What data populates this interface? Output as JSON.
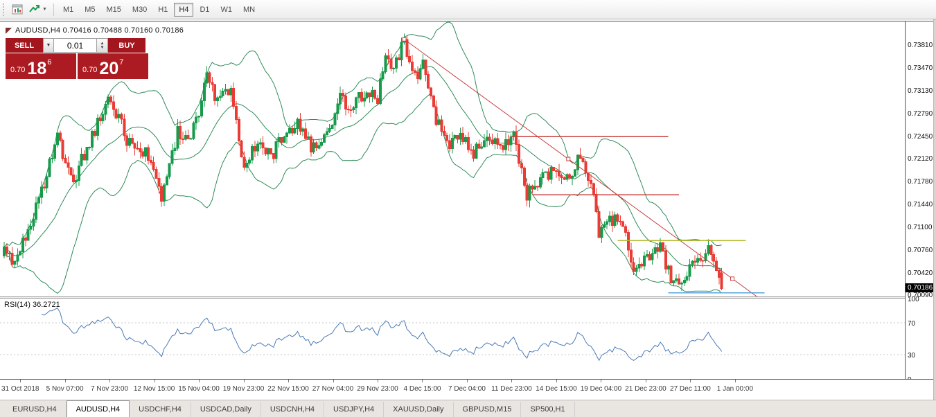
{
  "toolbar": {
    "timeframes": [
      "M1",
      "M5",
      "M15",
      "M30",
      "H1",
      "H4",
      "D1",
      "W1",
      "MN"
    ],
    "active_timeframe": "H4",
    "icons": [
      "new-chart-icon",
      "indicators-dropdown-icon"
    ]
  },
  "chart_header": {
    "symbol_ohlc": "AUDUSD,H4  0.70416 0.70488 0.70160 0.70186"
  },
  "trade_panel": {
    "sell_label": "SELL",
    "buy_label": "BUY",
    "volume": "0.01",
    "bid": {
      "base": "0.70",
      "big": "18",
      "sup": "6"
    },
    "ask": {
      "base": "0.70",
      "big": "20",
      "sup": "7"
    },
    "colors": {
      "button": "#a4161d",
      "price_box": "#ad1b22"
    }
  },
  "price_axis": {
    "labels": [
      "0.73810",
      "0.73470",
      "0.73130",
      "0.72790",
      "0.72450",
      "0.72120",
      "0.71780",
      "0.71440",
      "0.71100",
      "0.70760",
      "0.70420",
      "0.70090"
    ],
    "current_price_label": "0.70186",
    "current_price": 0.70186
  },
  "rsi_panel": {
    "label": "RSI(14) 36.2721",
    "axis_labels": [
      "100",
      "70",
      "30",
      "0"
    ]
  },
  "time_axis": {
    "labels": [
      "31 Oct 2018",
      "5 Nov 07:00",
      "7 Nov 23:00",
      "12 Nov 15:00",
      "15 Nov 04:00",
      "19 Nov 23:00",
      "22 Nov 15:00",
      "27 Nov 04:00",
      "29 Nov 23:00",
      "4 Dec 15:00",
      "7 Dec 04:00",
      "11 Dec 23:00",
      "14 Dec 15:00",
      "19 Dec 04:00",
      "21 Dec 23:00",
      "27 Dec 11:00",
      "1 Jan 00:00"
    ]
  },
  "tab_bar": {
    "tabs": [
      "EURUSD,H4",
      "AUDUSD,H4",
      "USDCHF,H4",
      "USDCAD,Daily",
      "USDCNH,H4",
      "USDJPY,H4",
      "XAUUSD,Daily",
      "GBPUSD,M15",
      "SP500,H1"
    ],
    "active_tab": "AUDUSD,H4"
  },
  "chart_data": {
    "type": "candlestick",
    "symbol": "AUDUSD",
    "timeframe": "H4",
    "ohlc": {
      "open": 0.70416,
      "high": 0.70488,
      "low": 0.7016,
      "close": 0.70186
    },
    "bars": 270,
    "seed": 20181231,
    "price_range": {
      "top": 0.74125,
      "bottom": 0.70075
    },
    "last_bar": {
      "open": 0.70416,
      "high": 0.70488,
      "low": 0.7016,
      "close": 0.70186
    },
    "price_path": [
      [
        0,
        0.7075
      ],
      [
        3,
        0.7062
      ],
      [
        8,
        0.709
      ],
      [
        14,
        0.716
      ],
      [
        20,
        0.7242
      ],
      [
        26,
        0.718
      ],
      [
        31,
        0.7228
      ],
      [
        39,
        0.73
      ],
      [
        43,
        0.7272
      ],
      [
        47,
        0.7232
      ],
      [
        54,
        0.7218
      ],
      [
        59,
        0.7152
      ],
      [
        65,
        0.7255
      ],
      [
        70,
        0.724
      ],
      [
        76,
        0.733
      ],
      [
        80,
        0.7298
      ],
      [
        85,
        0.7318
      ],
      [
        90,
        0.72
      ],
      [
        95,
        0.7238
      ],
      [
        100,
        0.7212
      ],
      [
        105,
        0.7248
      ],
      [
        110,
        0.7262
      ],
      [
        115,
        0.723
      ],
      [
        120,
        0.724
      ],
      [
        126,
        0.7302
      ],
      [
        131,
        0.7288
      ],
      [
        136,
        0.7318
      ],
      [
        140,
        0.73
      ],
      [
        143,
        0.7368
      ],
      [
        146,
        0.7345
      ],
      [
        150,
        0.739
      ],
      [
        154,
        0.7332
      ],
      [
        157,
        0.735
      ],
      [
        162,
        0.7268
      ],
      [
        166,
        0.7232
      ],
      [
        171,
        0.7252
      ],
      [
        176,
        0.7222
      ],
      [
        182,
        0.724
      ],
      [
        187,
        0.7228
      ],
      [
        191,
        0.7244
      ],
      [
        196,
        0.7158
      ],
      [
        201,
        0.7182
      ],
      [
        206,
        0.7192
      ],
      [
        211,
        0.7178
      ],
      [
        216,
        0.722
      ],
      [
        220,
        0.718
      ],
      [
        223,
        0.7102
      ],
      [
        228,
        0.7122
      ],
      [
        232,
        0.7108
      ],
      [
        236,
        0.7052
      ],
      [
        241,
        0.7068
      ],
      [
        246,
        0.7076
      ],
      [
        250,
        0.703
      ],
      [
        254,
        0.7026
      ],
      [
        258,
        0.7052
      ],
      [
        262,
        0.707
      ],
      [
        265,
        0.7076
      ],
      [
        268,
        0.7042
      ],
      [
        269,
        0.70186
      ]
    ],
    "colors": {
      "up": "#169b4b",
      "down": "#ea3b34",
      "bollinger": "#2e8b57",
      "trend": "#c94040",
      "rsi": "#4a79b5"
    },
    "bollinger": {
      "period": 20,
      "deviation": 2
    },
    "trendline": {
      "from_bar": 150,
      "from_price": 0.739,
      "to_bar": 273,
      "to_price": 0.7033,
      "ray_to_bar": 283
    },
    "hlines": [
      {
        "price": 0.7245,
        "from_bar": 190,
        "to_bar": 249,
        "color": "#c94040"
      },
      {
        "price": 0.7158,
        "from_bar": 198,
        "to_bar": 253,
        "color": "#c94040"
      },
      {
        "price": 0.709,
        "from_bar": 230,
        "to_bar": 278,
        "color": "#b3bb2e"
      },
      {
        "price": 0.7012,
        "from_bar": 249,
        "to_bar": 285,
        "color": "#55a5dd"
      }
    ],
    "rsi": {
      "period": 14,
      "value": 36.2721,
      "levels": [
        70,
        30
      ],
      "range": [
        0,
        100
      ]
    }
  }
}
